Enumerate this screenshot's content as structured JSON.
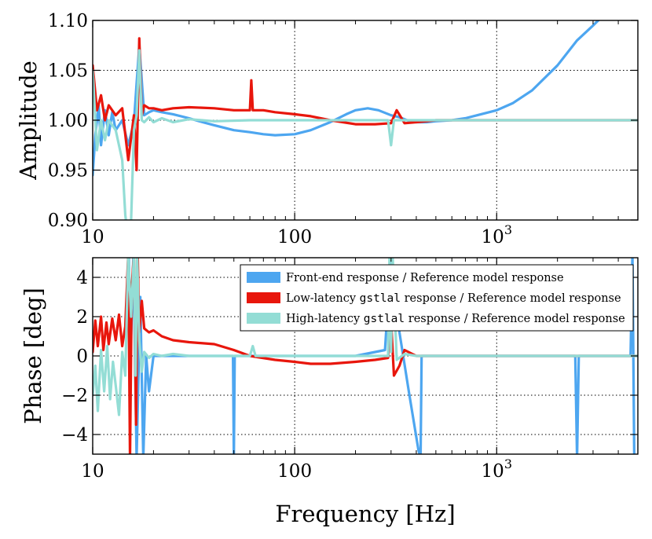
{
  "chart_data": [
    {
      "type": "line",
      "ylabel": "Amplitude",
      "xscale": "log",
      "xlim": [
        10,
        5000
      ],
      "ylim": [
        0.9,
        1.1
      ],
      "grid": true,
      "xticks": [
        {
          "value": 10,
          "label": "10"
        },
        {
          "value": 100,
          "label": "100"
        },
        {
          "value": 1000,
          "label": "10",
          "exponent": "3"
        }
      ],
      "yticks": [
        {
          "value": 0.9,
          "label": "0.90"
        },
        {
          "value": 0.95,
          "label": "0.95"
        },
        {
          "value": 1.0,
          "label": "1.00"
        },
        {
          "value": 1.05,
          "label": "1.05"
        },
        {
          "value": 1.1,
          "label": "1.10"
        }
      ],
      "series": [
        {
          "color": "#4da6f0",
          "x": [
            10,
            10.3,
            10.7,
            11,
            11.5,
            12,
            12.5,
            13,
            14,
            15,
            16,
            17,
            18,
            19,
            20,
            22,
            25,
            30,
            35,
            40,
            50,
            60,
            70,
            80,
            100,
            120,
            150,
            180,
            200,
            230,
            260,
            300,
            330,
            360,
            400,
            450,
            500,
            600,
            700,
            800,
            1000,
            1200,
            1500,
            2000,
            2500,
            3000,
            3500
          ],
          "y": [
            0.945,
            0.985,
            1.015,
            0.975,
            1.01,
            0.985,
            1.008,
            0.99,
            1.0,
            0.975,
            0.998,
            1.075,
            1.005,
            1.008,
            1.01,
            1.008,
            1.006,
            1.002,
            0.998,
            0.995,
            0.99,
            0.988,
            0.986,
            0.985,
            0.986,
            0.99,
            0.998,
            1.006,
            1.01,
            1.012,
            1.01,
            1.005,
            1.003,
            1.0,
            0.998,
            0.998,
            0.999,
            1.0,
            1.002,
            1.005,
            1.01,
            1.017,
            1.03,
            1.055,
            1.08,
            1.095,
            1.108
          ]
        },
        {
          "color": "#e8160c",
          "x": [
            10,
            10.5,
            11,
            11.5,
            12,
            13,
            14,
            15,
            16,
            16.5,
            17,
            17.5,
            18,
            19,
            20,
            22,
            25,
            30,
            40,
            50,
            60,
            61,
            62,
            70,
            80,
            100,
            120,
            150,
            200,
            250,
            300,
            320,
            350,
            400,
            450,
            500,
            600,
            800,
            1000,
            1500,
            2000,
            3000,
            5000
          ],
          "y": [
            1.055,
            1.01,
            1.025,
            1.0,
            1.015,
            1.005,
            1.012,
            0.96,
            1.005,
            0.95,
            1.082,
            1.005,
            1.015,
            1.012,
            1.012,
            1.01,
            1.012,
            1.013,
            1.012,
            1.01,
            1.01,
            1.04,
            1.01,
            1.01,
            1.008,
            1.006,
            1.004,
            1.0,
            0.996,
            0.996,
            0.997,
            1.01,
            0.997,
            0.998,
            0.999,
            1.0,
            1.0,
            1.0,
            1.0,
            1.0,
            1.0,
            1.0,
            1.0
          ]
        },
        {
          "color": "#93ddd5",
          "x": [
            10,
            10.5,
            11,
            11.5,
            12,
            13,
            14,
            14.5,
            15,
            15.5,
            16,
            16.5,
            17,
            17.5,
            18,
            19,
            20,
            22,
            25,
            30,
            40,
            60,
            80,
            100,
            150,
            200,
            250,
            290,
            300,
            310,
            330,
            400,
            500,
            700,
            1000,
            1500,
            2000,
            3000,
            5000
          ],
          "y": [
            1.05,
            0.97,
            1.0,
            0.98,
            1.0,
            0.99,
            0.96,
            0.905,
            0.88,
            0.9,
            0.99,
            1.005,
            1.07,
            1.0,
            0.998,
            1.003,
            0.998,
            1.002,
            0.998,
            1.001,
            0.999,
            1.0,
            1.0,
            1.0,
            1.0,
            1.0,
            1.0,
            1.0,
            0.975,
            1.0,
            1.0,
            1.0,
            1.0,
            1.0,
            1.0,
            1.0,
            1.0,
            1.0,
            1.0
          ]
        }
      ]
    },
    {
      "type": "line",
      "ylabel": "Phase [deg]",
      "xlabel": "Frequency [Hz]",
      "xscale": "log",
      "xlim": [
        10,
        5000
      ],
      "ylim": [
        -5,
        5
      ],
      "grid": true,
      "legend_position": "upper-right",
      "xticks": [
        {
          "value": 10,
          "label": "10"
        },
        {
          "value": 100,
          "label": "100"
        },
        {
          "value": 1000,
          "label": "10",
          "exponent": "3"
        }
      ],
      "yticks": [
        {
          "value": -4,
          "label": "−4"
        },
        {
          "value": -2,
          "label": "−2"
        },
        {
          "value": 0,
          "label": "0"
        },
        {
          "value": 2,
          "label": "2"
        },
        {
          "value": 4,
          "label": "4"
        }
      ],
      "series": [
        {
          "name": "Front-end response / Reference model response",
          "legend_parts": [
            {
              "text": "Front-end response / Reference model response",
              "mono": false
            }
          ],
          "color": "#4da6f0",
          "x": [
            15.1,
            15.4,
            15.9,
            16.5,
            17.2,
            17.8,
            18.4,
            19,
            20,
            25,
            30,
            40,
            49.5,
            50,
            50.5,
            70,
            100,
            200,
            280,
            300,
            330,
            370,
            410,
            420,
            425,
            2450,
            2500,
            2550,
            4600,
            4700,
            4800
          ],
          "y": [
            5.2,
            0.0,
            5.2,
            -5.2,
            3.0,
            -5.2,
            0.0,
            -1.8,
            0.0,
            0.0,
            0.0,
            0.0,
            0.0,
            -5.2,
            0.0,
            0.0,
            0.0,
            0.0,
            0.3,
            5.2,
            1.2,
            -2.0,
            -4.8,
            -5.2,
            0.0,
            0.0,
            -5.2,
            0.0,
            0.0,
            5.2,
            -5.2
          ]
        },
        {
          "name": "Low-latency gstlal response / Reference model response",
          "legend_parts": [
            {
              "text": "Low-latency ",
              "mono": false
            },
            {
              "text": "gstlal",
              "mono": true
            },
            {
              "text": " response / Reference model response",
              "mono": false
            }
          ],
          "color": "#e8160c",
          "x": [
            10,
            10.3,
            10.6,
            11,
            11.3,
            11.7,
            12,
            12.5,
            13,
            13.5,
            14,
            14.5,
            15,
            15.3,
            15.6,
            16,
            16.4,
            16.7,
            17,
            17.5,
            18,
            19,
            20,
            22,
            25,
            30,
            40,
            50,
            60,
            80,
            100,
            120,
            150,
            200,
            250,
            290,
            300,
            310,
            330,
            350,
            400,
            500,
            700,
            1000,
            2000,
            5000
          ],
          "y": [
            0.2,
            1.8,
            0.5,
            2.0,
            0.3,
            1.7,
            0.6,
            1.9,
            0.8,
            2.1,
            0.5,
            1.5,
            5.2,
            -5.2,
            3.5,
            5.2,
            -3.5,
            5.2,
            1.2,
            2.8,
            1.4,
            1.2,
            1.3,
            1.0,
            0.8,
            0.7,
            0.6,
            0.3,
            0.0,
            -0.2,
            -0.3,
            -0.4,
            -0.4,
            -0.3,
            -0.2,
            -0.1,
            1.8,
            -1.0,
            -0.5,
            0.3,
            0.0,
            0.0,
            0.0,
            0.0,
            0.0,
            0.0
          ]
        },
        {
          "name": "High-latency gstlal response / Reference model response",
          "legend_parts": [
            {
              "text": "High-latency ",
              "mono": false
            },
            {
              "text": "gstlal",
              "mono": true
            },
            {
              "text": " response / Reference model response",
              "mono": false
            }
          ],
          "color": "#93ddd5",
          "x": [
            10,
            10.3,
            10.6,
            11,
            11.4,
            11.8,
            12.2,
            12.6,
            13,
            13.5,
            14,
            14.5,
            15,
            15.5,
            16,
            16.3,
            16.6,
            17,
            17.5,
            18,
            19,
            20,
            22,
            25,
            30,
            40,
            60,
            62,
            64,
            80,
            100,
            150,
            200,
            250,
            290,
            295,
            300,
            305,
            320,
            350,
            400,
            500,
            700,
            1000,
            2000,
            5000
          ],
          "y": [
            -2.0,
            -0.5,
            -2.8,
            0.3,
            -1.8,
            0.5,
            -2.2,
            -0.3,
            -1.5,
            -3.0,
            0.2,
            -1.0,
            5.2,
            2.0,
            5.2,
            -1.0,
            5.2,
            0.8,
            -0.8,
            0.2,
            -0.1,
            0.1,
            0.0,
            0.1,
            0.0,
            0.0,
            0.0,
            0.5,
            0.0,
            0.0,
            0.0,
            0.0,
            0.0,
            0.0,
            0.0,
            5.2,
            0.2,
            5.2,
            -0.2,
            0.1,
            0.0,
            0.0,
            0.0,
            0.0,
            0.0,
            0.0
          ]
        }
      ]
    }
  ]
}
